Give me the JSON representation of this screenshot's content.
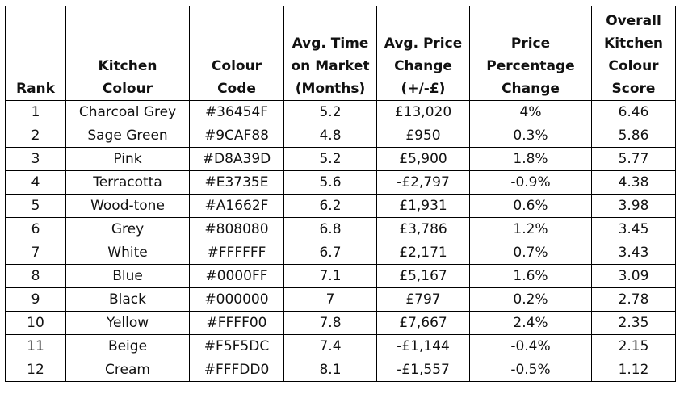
{
  "table": {
    "headers": {
      "rank": [
        "Rank"
      ],
      "colour": [
        "Kitchen",
        "Colour"
      ],
      "code": [
        "Colour",
        "Code"
      ],
      "time": [
        "Avg. Time",
        "on Market",
        "(Months)"
      ],
      "price": [
        "Avg. Price",
        "Change",
        "(+/-£)"
      ],
      "pct": [
        "Price",
        "Percentage",
        "Change"
      ],
      "score": [
        "Overall",
        "Kitchen",
        "Colour",
        "Score"
      ]
    },
    "rows": [
      {
        "rank": "1",
        "colour": "Charcoal Grey",
        "code": "#36454F",
        "time": "5.2",
        "price": "£13,020",
        "pct": "4%",
        "score": "6.46"
      },
      {
        "rank": "2",
        "colour": "Sage Green",
        "code": "#9CAF88",
        "time": "4.8",
        "price": "£950",
        "pct": "0.3%",
        "score": "5.86"
      },
      {
        "rank": "3",
        "colour": "Pink",
        "code": "#D8A39D",
        "time": "5.2",
        "price": "£5,900",
        "pct": "1.8%",
        "score": "5.77"
      },
      {
        "rank": "4",
        "colour": "Terracotta",
        "code": "#E3735E",
        "time": "5.6",
        "price": "-£2,797",
        "pct": "-0.9%",
        "score": "4.38"
      },
      {
        "rank": "5",
        "colour": "Wood-tone",
        "code": "#A1662F",
        "time": "6.2",
        "price": "£1,931",
        "pct": "0.6%",
        "score": "3.98"
      },
      {
        "rank": "6",
        "colour": "Grey",
        "code": "#808080",
        "time": "6.8",
        "price": "£3,786",
        "pct": "1.2%",
        "score": "3.45"
      },
      {
        "rank": "7",
        "colour": "White",
        "code": "#FFFFFF",
        "time": "6.7",
        "price": "£2,171",
        "pct": "0.7%",
        "score": "3.43"
      },
      {
        "rank": "8",
        "colour": "Blue",
        "code": "#0000FF",
        "time": "7.1",
        "price": "£5,167",
        "pct": "1.6%",
        "score": "3.09"
      },
      {
        "rank": "9",
        "colour": "Black",
        "code": "#000000",
        "time": "7",
        "price": "£797",
        "pct": "0.2%",
        "score": "2.78"
      },
      {
        "rank": "10",
        "colour": "Yellow",
        "code": "#FFFF00",
        "time": "7.8",
        "price": "£7,667",
        "pct": "2.4%",
        "score": "2.35"
      },
      {
        "rank": "11",
        "colour": "Beige",
        "code": "#F5F5DC",
        "time": "7.4",
        "price": "-£1,144",
        "pct": "-0.4%",
        "score": "2.15"
      },
      {
        "rank": "12",
        "colour": "Cream",
        "code": "#FFFDD0",
        "time": "8.1",
        "price": "-£1,557",
        "pct": "-0.5%",
        "score": "1.12"
      }
    ]
  }
}
